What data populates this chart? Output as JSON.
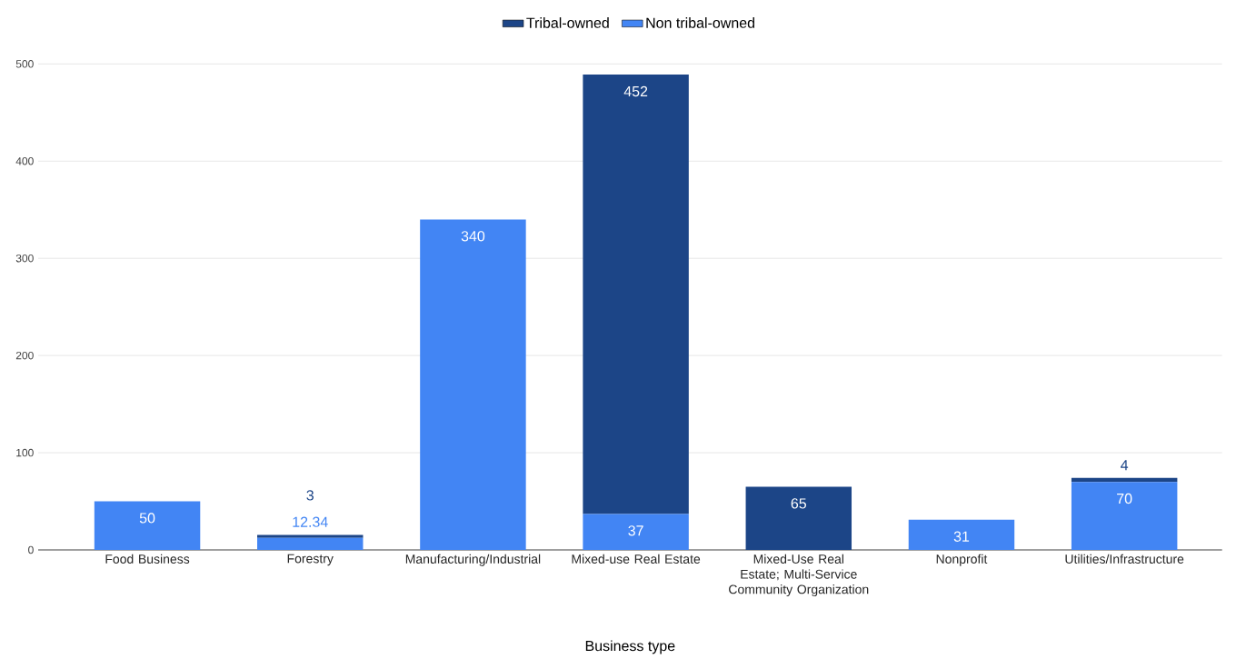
{
  "chart_data": {
    "type": "bar",
    "stacked": true,
    "xlabel": "Business type",
    "categories": [
      "Food Business",
      "Forestry",
      "Manufacturing/Industrial",
      "Mixed-use Real Estate",
      "Mixed-Use Real Estate; Multi-Service Community Organization",
      "Nonprofit",
      "Utilities/Infrastructure"
    ],
    "series": [
      {
        "name": "Non tribal-owned",
        "color": "#4285f4",
        "values": [
          50,
          12.34,
          340,
          37,
          null,
          31,
          70
        ]
      },
      {
        "name": "Tribal-owned",
        "color": "#1c4587",
        "values": [
          null,
          3,
          null,
          452,
          65,
          null,
          4
        ]
      }
    ],
    "ylim": [
      0,
      500
    ],
    "yticks": [
      0,
      100,
      200,
      300,
      400,
      500
    ],
    "grid": "y",
    "legend": "top",
    "data_labels": true
  }
}
